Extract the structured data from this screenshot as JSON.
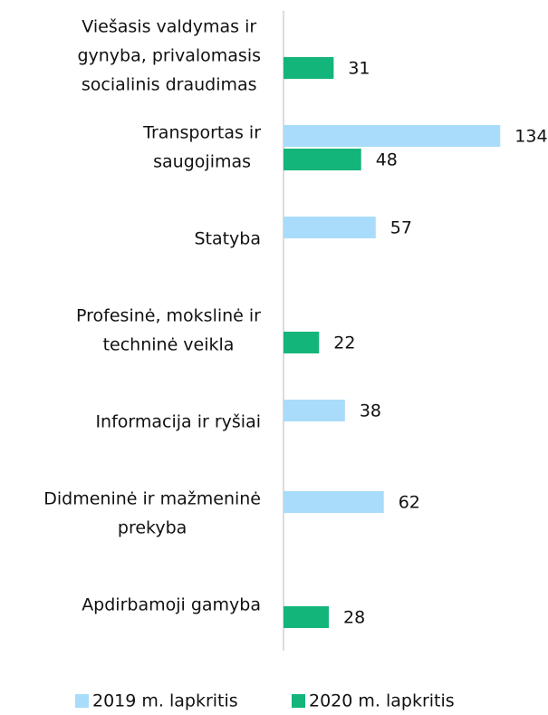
{
  "chart_data": {
    "type": "barh",
    "categories": [
      [
        "Viešasis valdymas ir",
        "gynyba, privalomasis",
        "socialinis draudimas"
      ],
      [
        "Transportas ir",
        "saugojimas"
      ],
      [
        "Statyba"
      ],
      [
        "Profesinė, mokslinė ir",
        "techninė veikla"
      ],
      [
        "Informacija ir ryšiai"
      ],
      [
        "Didmeninė ir mažmeninė",
        "prekyba"
      ],
      [
        "Apdirbamoji gamyba"
      ]
    ],
    "series": [
      {
        "name": "2019 m. lapkritis",
        "color": "#a9dcfa",
        "values": [
          null,
          134,
          57,
          null,
          38,
          62,
          null
        ]
      },
      {
        "name": "2020 m. lapkritis",
        "color": "#14b57a",
        "values": [
          31,
          48,
          null,
          22,
          null,
          null,
          28
        ]
      }
    ],
    "xlim": [
      0,
      140
    ],
    "legend": "bottom"
  }
}
